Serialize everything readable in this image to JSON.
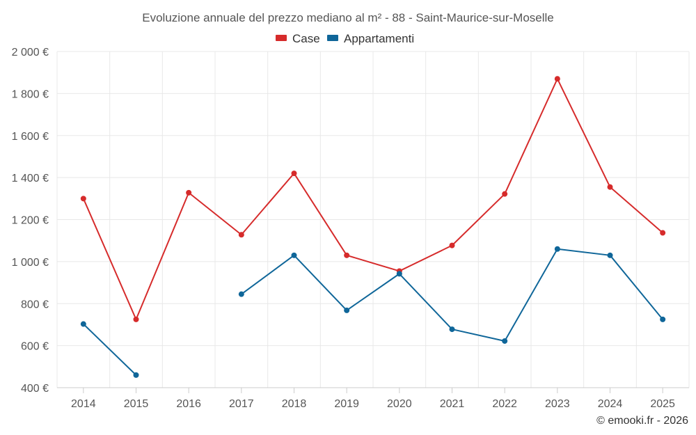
{
  "chart_data": {
    "type": "line",
    "title": "Evoluzione annuale del prezzo mediano al m² - 88 - Saint-Maurice-sur-Moselle",
    "categories": [
      "2014",
      "2015",
      "2016",
      "2017",
      "2018",
      "2019",
      "2020",
      "2021",
      "2022",
      "2023",
      "2024",
      "2025"
    ],
    "y_ticks": [
      400,
      600,
      800,
      1000,
      1200,
      1400,
      1600,
      1800,
      2000
    ],
    "y_tick_labels": [
      "400 €",
      "600 €",
      "800 €",
      "1 000 €",
      "1 200 €",
      "1 400 €",
      "1 600 €",
      "1 800 €",
      "2 000 €"
    ],
    "ylim": [
      400,
      2000
    ],
    "grid": true,
    "legend_position": "top-center",
    "series": [
      {
        "name": "Case",
        "color": "#d62b2b",
        "values": [
          1300,
          725,
          1328,
          1128,
          1420,
          1030,
          955,
          1077,
          1322,
          1870,
          1355,
          1137
        ]
      },
      {
        "name": "Appartamenti",
        "color": "#0f6699",
        "values": [
          703,
          460,
          null,
          845,
          1030,
          768,
          942,
          678,
          622,
          1060,
          1030,
          725
        ]
      }
    ]
  },
  "credit": "© emooki.fr - 2026"
}
